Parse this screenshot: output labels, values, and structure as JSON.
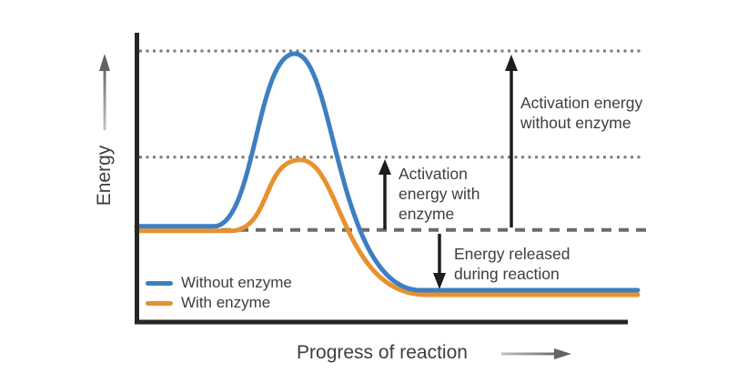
{
  "figure": {
    "y_axis_label": "Energy",
    "x_axis_label": "Progress of reaction",
    "annotations": {
      "activation_without": [
        "Activation energy",
        "without enzyme"
      ],
      "activation_with": [
        "Activation",
        "energy with",
        "enzyme"
      ],
      "energy_released": [
        "Energy released",
        "during reaction"
      ]
    }
  },
  "colors": {
    "without_enzyme": "#3d7fc1",
    "with_enzyme": "#e8912f",
    "dotted_line": "#7a7a7a",
    "dashed_line": "#6b6b6b",
    "annotation_arrow": "#1d1d1d",
    "axis": "#262626",
    "text": "#3e3e3e",
    "gray_arrow_dark": "#636363",
    "gray_arrow_light": "#b5b5b5"
  },
  "chart_data": {
    "type": "line",
    "title": "",
    "xlabel": "Progress of reaction",
    "ylabel": "Energy",
    "x_ticks": [],
    "y_ticks": [],
    "grid": false,
    "legend_position": "inside bottom-left",
    "y_units": "relative energy (axes unlabeled; 0 = product level, 100 = peak without enzyme)",
    "series": [
      {
        "name": "Without enzyme",
        "color": "#3d7fc1",
        "levels": {
          "reactant": 27,
          "peak": 100,
          "product": 0
        }
      },
      {
        "name": "With enzyme",
        "color": "#e8912f",
        "levels": {
          "reactant": 27,
          "peak": 57,
          "product": 0
        }
      }
    ],
    "reference_lines": [
      {
        "style": "dotted",
        "level": 100,
        "series": 0,
        "label": "peak energy without enzyme"
      },
      {
        "style": "dotted",
        "level": 57,
        "series": 1,
        "label": "peak energy with enzyme"
      },
      {
        "style": "dashed",
        "level": 27,
        "label": "reactant starting energy level"
      }
    ],
    "annotations": [
      {
        "text": "Activation energy without enzyme",
        "arrow": "up",
        "from_level": 27,
        "to_level": 100
      },
      {
        "text": "Activation energy with enzyme",
        "arrow": "up",
        "from_level": 27,
        "to_level": 57
      },
      {
        "text": "Energy released during reaction",
        "arrow": "down",
        "from_level": 27,
        "to_level": 0
      }
    ]
  }
}
